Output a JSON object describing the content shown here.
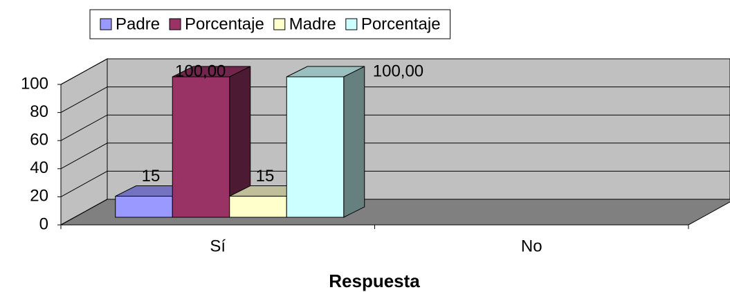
{
  "chart_data": {
    "type": "bar3d",
    "x_label": "Respuesta",
    "categories": [
      "Sí",
      "No"
    ],
    "series": [
      {
        "name": "Padre",
        "color": "#9999ff",
        "values": [
          15,
          null
        ],
        "value_labels": [
          "15",
          null
        ]
      },
      {
        "name": "Porcentaje",
        "color": "#993366",
        "values": [
          100,
          null
        ],
        "value_labels": [
          "100,00",
          null
        ]
      },
      {
        "name": "Madre",
        "color": "#ffffcc",
        "values": [
          15,
          null
        ],
        "value_labels": [
          "15",
          null
        ]
      },
      {
        "name": "Porcentaje",
        "color": "#ccffff",
        "values": [
          100,
          null
        ],
        "value_labels": [
          "100,00",
          null
        ]
      }
    ],
    "ylim": [
      0,
      100
    ],
    "yticks": [
      0,
      20,
      40,
      60,
      80,
      100
    ],
    "grid": true,
    "legend": "top"
  }
}
